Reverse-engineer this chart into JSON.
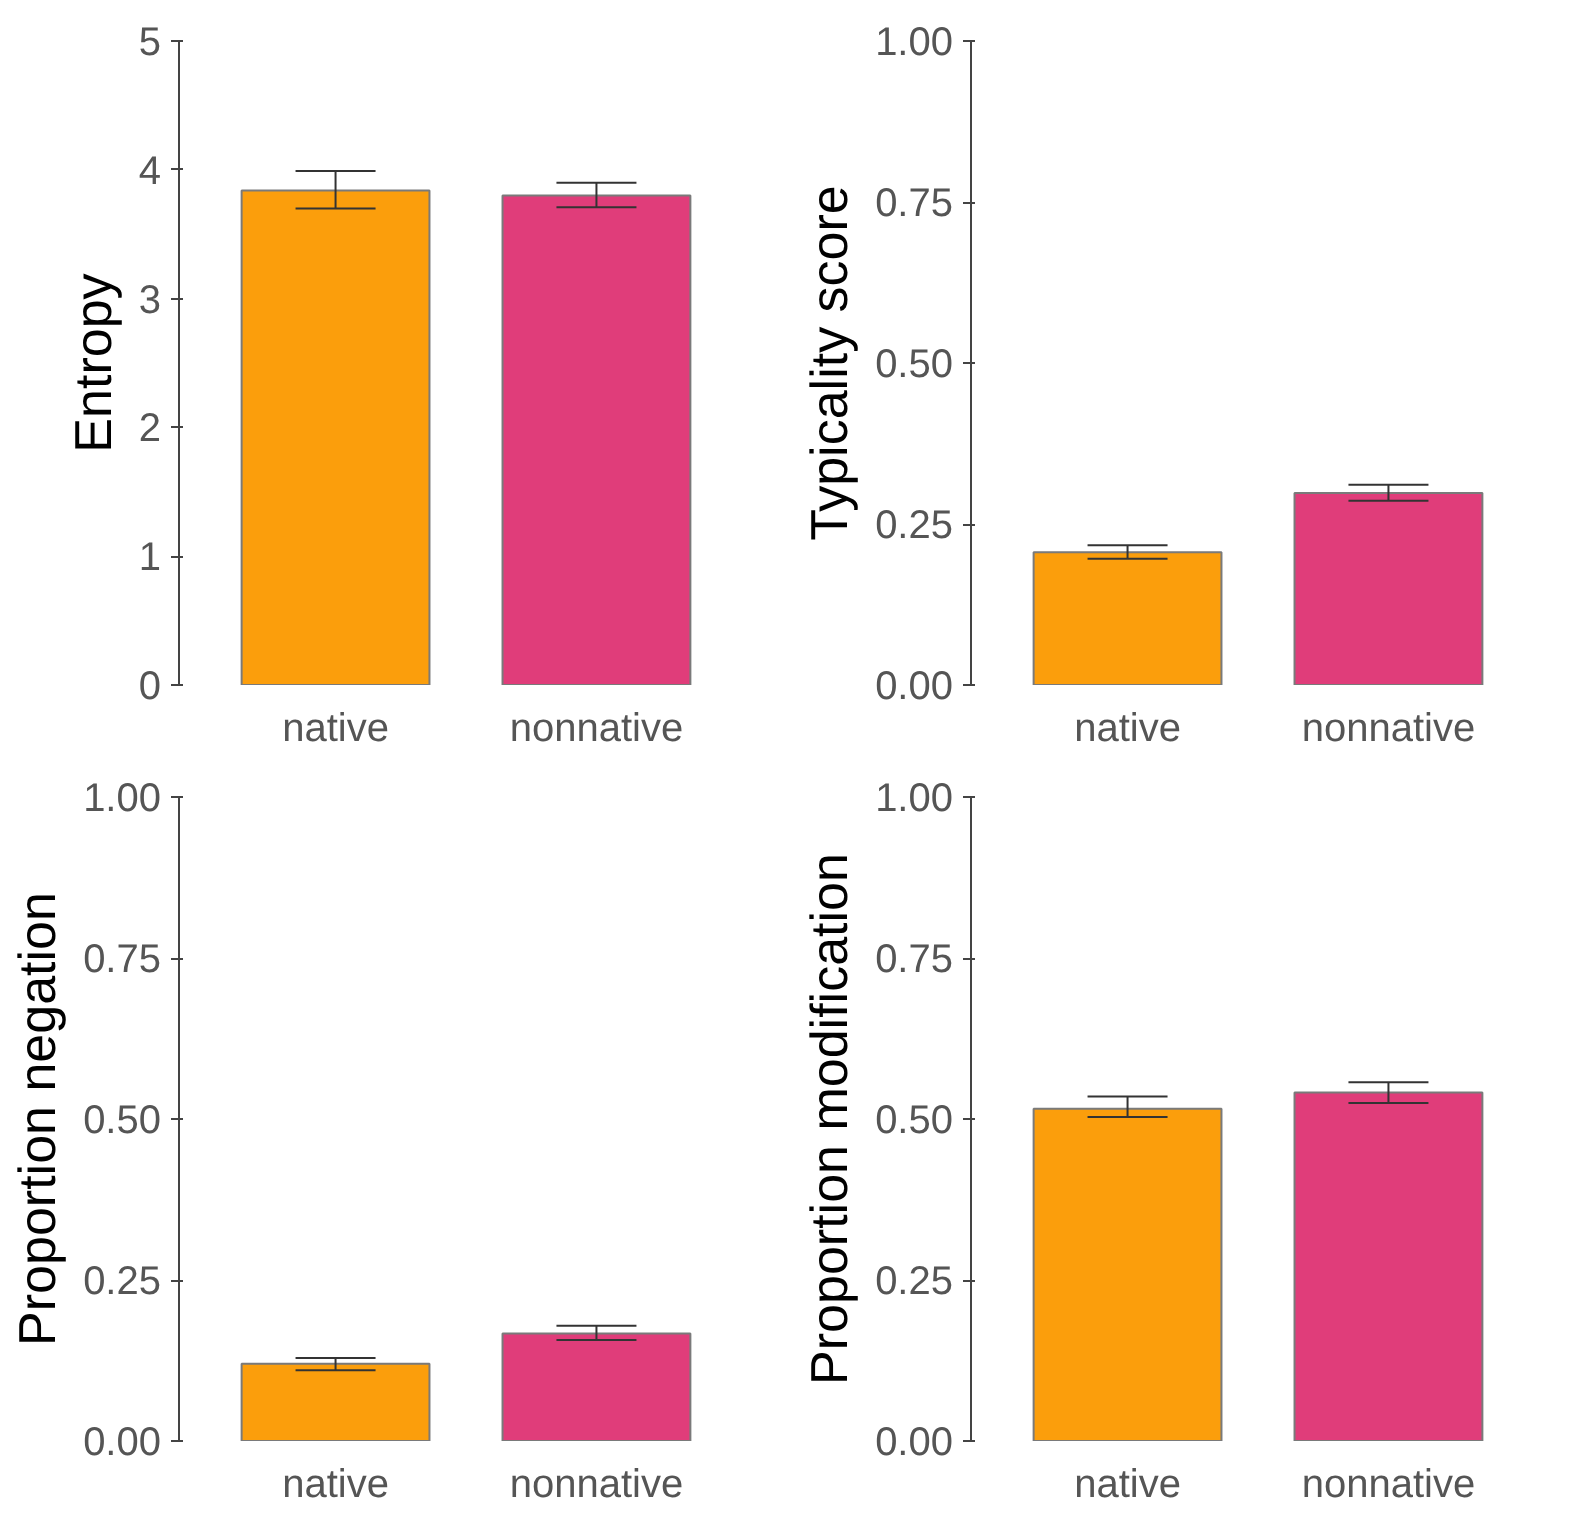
{
  "chart_data": [
    {
      "type": "bar",
      "ylabel": "Entropy",
      "categories": [
        "native",
        "nonnative"
      ],
      "values": [
        3.84,
        3.8
      ],
      "colors": [
        "#fb9e0c",
        "#e03d7a"
      ],
      "errors": [
        [
          3.7,
          3.99
        ],
        [
          3.71,
          3.9
        ]
      ],
      "ylim": [
        0,
        5
      ],
      "yticks": [
        0,
        1,
        2,
        3,
        4,
        5
      ],
      "grid": false
    },
    {
      "type": "bar",
      "ylabel": "Typicality score",
      "categories": [
        "native",
        "nonnative"
      ],
      "values": [
        0.206,
        0.298
      ],
      "colors": [
        "#fb9e0c",
        "#e03d7a"
      ],
      "errors": [
        [
          0.196,
          0.217
        ],
        [
          0.286,
          0.311
        ]
      ],
      "ylim": [
        0,
        1
      ],
      "yticks": [
        {
          "value": 0,
          "label": "0.00"
        },
        {
          "value": 0.25,
          "label": "0.25"
        },
        {
          "value": 0.5,
          "label": "0.50"
        },
        {
          "value": 0.75,
          "label": "0.75"
        },
        {
          "value": 1,
          "label": "1.00"
        }
      ],
      "grid": false
    },
    {
      "type": "bar",
      "ylabel": "Proportion negation",
      "categories": [
        "native",
        "nonnative"
      ],
      "values": [
        0.12,
        0.167
      ],
      "colors": [
        "#fb9e0c",
        "#e03d7a"
      ],
      "errors": [
        [
          0.11,
          0.129
        ],
        [
          0.157,
          0.179
        ]
      ],
      "ylim": [
        0,
        1
      ],
      "yticks": [
        {
          "value": 0,
          "label": "0.00"
        },
        {
          "value": 0.25,
          "label": "0.25"
        },
        {
          "value": 0.5,
          "label": "0.50"
        },
        {
          "value": 0.75,
          "label": "0.75"
        },
        {
          "value": 1,
          "label": "1.00"
        }
      ],
      "grid": false
    },
    {
      "type": "bar",
      "ylabel": "Proportion modification",
      "categories": [
        "native",
        "nonnative"
      ],
      "values": [
        0.516,
        0.541
      ],
      "colors": [
        "#fb9e0c",
        "#e03d7a"
      ],
      "errors": [
        [
          0.503,
          0.535
        ],
        [
          0.525,
          0.557
        ]
      ],
      "ylim": [
        0,
        1
      ],
      "yticks": [
        {
          "value": 0,
          "label": "0.00"
        },
        {
          "value": 0.25,
          "label": "0.25"
        },
        {
          "value": 0.5,
          "label": "0.50"
        },
        {
          "value": 0.75,
          "label": "0.75"
        },
        {
          "value": 1,
          "label": "1.00"
        }
      ],
      "grid": false
    }
  ]
}
